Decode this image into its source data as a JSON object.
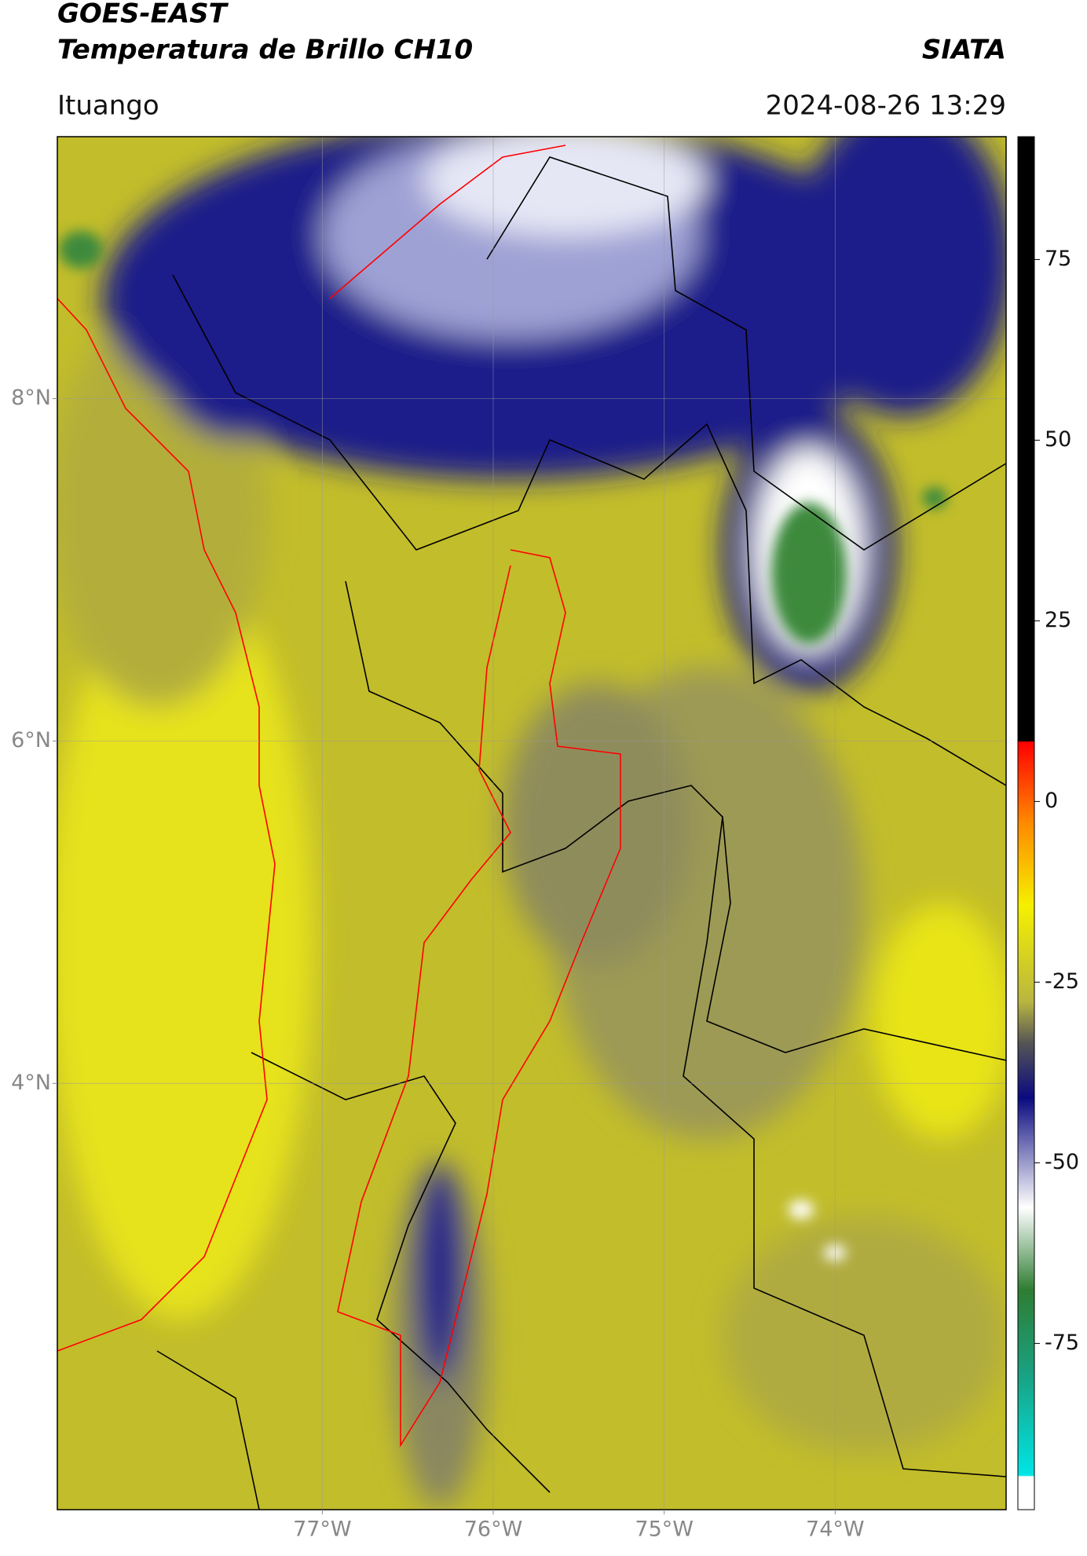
{
  "header": {
    "title_line1": "GOES-EAST",
    "title_line2": "Temperatura de Brillo CH10",
    "source": "SIATA",
    "region": "Ituango",
    "datetime": "2024-08-26 13:29"
  },
  "map": {
    "lonlim": [
      -78.55,
      -73.0
    ],
    "latlim": [
      1.51,
      9.53
    ],
    "lonticks": [
      {
        "value": -77,
        "label": "77°W"
      },
      {
        "value": -76,
        "label": "76°W"
      },
      {
        "value": -75,
        "label": "75°W"
      },
      {
        "value": -74,
        "label": "74°W"
      }
    ],
    "latticks": [
      {
        "value": 8,
        "label": "8°N"
      },
      {
        "value": 6,
        "label": "6°N"
      },
      {
        "value": 4,
        "label": "4°N"
      }
    ],
    "grid": true
  },
  "colorbar": {
    "lim": [
      -98,
      92
    ],
    "ticks": [
      75,
      50,
      25,
      0,
      -25,
      -50,
      -75
    ]
  }
}
